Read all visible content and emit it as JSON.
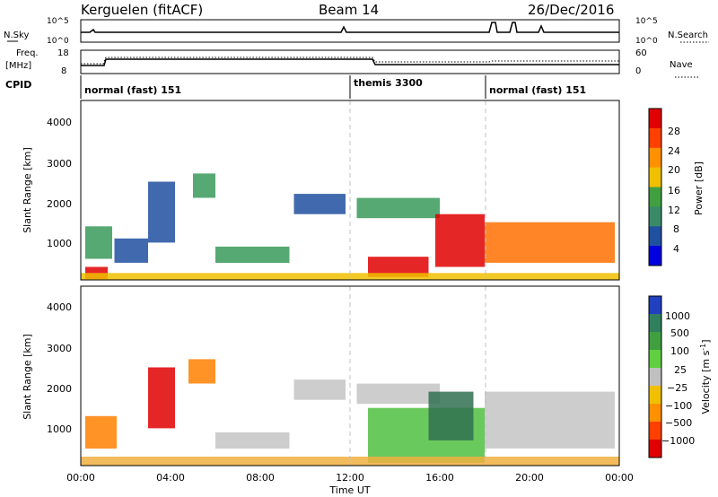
{
  "header": {
    "station": "Kerguelen (fitACF)",
    "beam": "Beam 14",
    "date": "26/Dec/2016"
  },
  "nsky": {
    "label": "N.Sky",
    "ticks": [
      "10^5",
      "10^0"
    ],
    "right_label": "N.Search",
    "right_ticks": [
      "10^5",
      "10^0"
    ]
  },
  "freq": {
    "label_line1": "Freq.",
    "label_line2": "[MHz]",
    "ticks": [
      "18",
      "8"
    ],
    "right_label": "Nave",
    "right_ticks": [
      "60",
      "0"
    ]
  },
  "cpid": {
    "label": "CPID",
    "segments": [
      {
        "label": "normal (fast) 151",
        "start": 0,
        "end": 12
      },
      {
        "label": "themis 3300",
        "start": 12,
        "end": 18
      },
      {
        "label": "normal (fast) 151",
        "start": 18,
        "end": 24
      }
    ]
  },
  "power_panel": {
    "ylabel": "Slant Range [km]",
    "yticks": [
      "4000",
      "3000",
      "2000",
      "1000"
    ],
    "colorbar_label": "Power [dB]",
    "colorbar_ticks": [
      "28",
      "24",
      "20",
      "16",
      "12",
      "8",
      "4"
    ],
    "colors": [
      "#e00000",
      "#ff4000",
      "#ff9000",
      "#f0c000",
      "#40a040",
      "#3a8a6a",
      "#2050a0",
      "#0000e0"
    ]
  },
  "velocity_panel": {
    "ylabel": "Slant Range [km]",
    "yticks": [
      "4000",
      "3000",
      "2000",
      "1000"
    ],
    "colorbar_label": "Velocity [m s",
    "colorbar_label_sup": "-1",
    "colorbar_label_end": "]",
    "colorbar_ticks": [
      "1000",
      "500",
      "100",
      "25",
      "−25",
      "−100",
      "−500",
      "−1000"
    ],
    "colors": [
      "#2040c0",
      "#308060",
      "#40a040",
      "#60d040",
      "#c0c0c0",
      "#f0c000",
      "#ff9000",
      "#ff4000",
      "#e00000"
    ]
  },
  "xaxis": {
    "ticks": [
      "00:00",
      "04:00",
      "08:00",
      "12:00",
      "16:00",
      "20:00",
      "00:00"
    ],
    "label": "Time UT"
  },
  "chart_data": {
    "type": "heatmap",
    "x_range_hours": [
      0,
      24
    ],
    "y_range_km": [
      180,
      4600
    ],
    "dividers_hours": [
      12,
      18
    ],
    "power_patches": [
      {
        "t0": 0.2,
        "t1": 1.4,
        "r0": 700,
        "r1": 1500,
        "level": "green"
      },
      {
        "t0": 0.2,
        "t1": 1.2,
        "r0": 200,
        "r1": 500,
        "level": "red"
      },
      {
        "t0": 1.5,
        "t1": 3.0,
        "r0": 600,
        "r1": 1200,
        "level": "blue"
      },
      {
        "t0": 3.0,
        "t1": 4.2,
        "r0": 1100,
        "r1": 2600,
        "level": "blue"
      },
      {
        "t0": 5.0,
        "t1": 6.0,
        "r0": 2200,
        "r1": 2800,
        "level": "green"
      },
      {
        "t0": 6.0,
        "t1": 9.3,
        "r0": 600,
        "r1": 1000,
        "level": "green"
      },
      {
        "t0": 9.5,
        "t1": 11.8,
        "r0": 1800,
        "r1": 2300,
        "level": "blue"
      },
      {
        "t0": 12.3,
        "t1": 16.0,
        "r0": 1700,
        "r1": 2200,
        "level": "green"
      },
      {
        "t0": 12.8,
        "t1": 15.5,
        "r0": 250,
        "r1": 750,
        "level": "red"
      },
      {
        "t0": 15.8,
        "t1": 18.0,
        "r0": 500,
        "r1": 1800,
        "level": "red"
      },
      {
        "t0": 18.0,
        "t1": 23.8,
        "r0": 600,
        "r1": 1600,
        "level": "orange"
      },
      {
        "t0": 0.0,
        "t1": 24.0,
        "r0": 180,
        "r1": 350,
        "level": "yellow"
      }
    ],
    "velocity_patches": [
      {
        "t0": 0.2,
        "t1": 1.6,
        "r0": 600,
        "r1": 1400,
        "level": "orange"
      },
      {
        "t0": 3.0,
        "t1": 4.2,
        "r0": 1100,
        "r1": 2600,
        "level": "red"
      },
      {
        "t0": 4.8,
        "t1": 6.0,
        "r0": 2200,
        "r1": 2800,
        "level": "orange"
      },
      {
        "t0": 6.0,
        "t1": 9.3,
        "r0": 600,
        "r1": 1000,
        "level": "grey"
      },
      {
        "t0": 9.5,
        "t1": 11.8,
        "r0": 1800,
        "r1": 2300,
        "level": "grey"
      },
      {
        "t0": 12.3,
        "t1": 16.0,
        "r0": 1700,
        "r1": 2200,
        "level": "grey"
      },
      {
        "t0": 12.8,
        "t1": 18.0,
        "r0": 250,
        "r1": 1600,
        "level": "green"
      },
      {
        "t0": 15.5,
        "t1": 17.5,
        "r0": 800,
        "r1": 2000,
        "level": "darkgreen"
      },
      {
        "t0": 18.0,
        "t1": 23.8,
        "r0": 600,
        "r1": 2000,
        "level": "grey"
      },
      {
        "t0": 0.0,
        "t1": 24.0,
        "r0": 180,
        "r1": 400,
        "level": "lightorange"
      }
    ]
  }
}
